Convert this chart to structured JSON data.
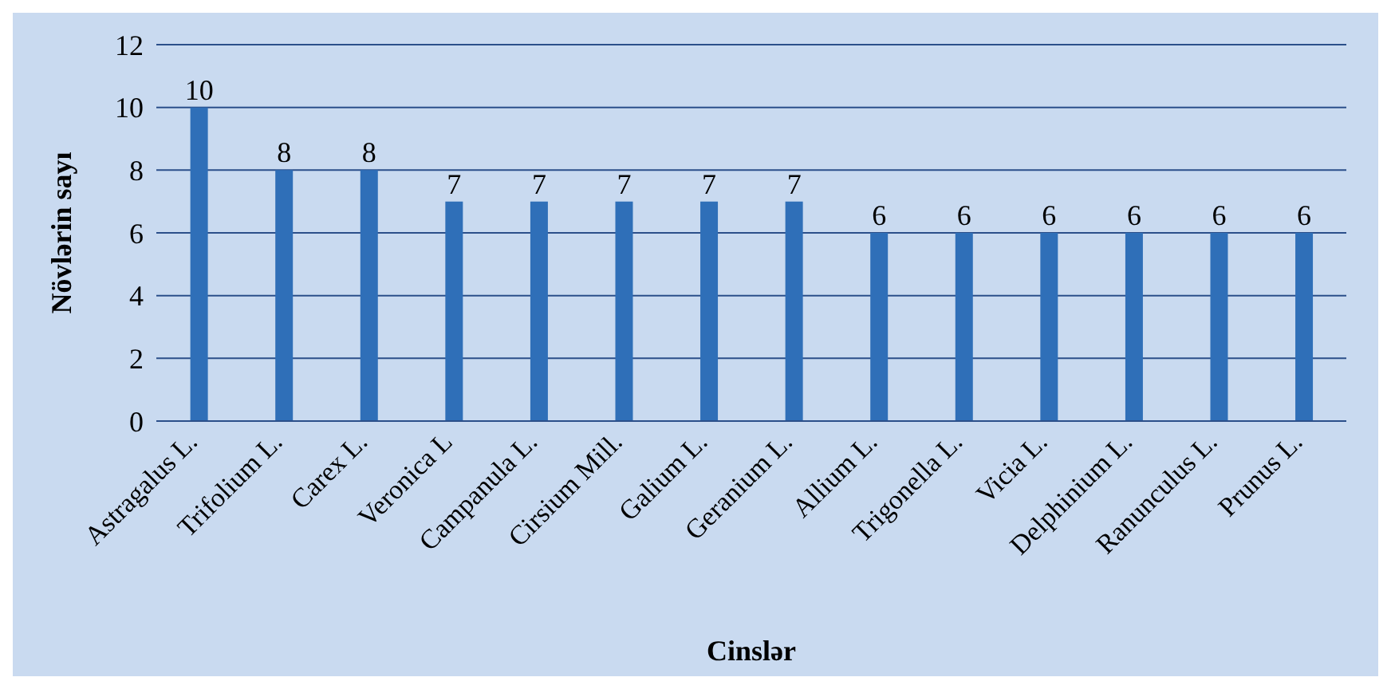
{
  "chart_data": {
    "type": "bar",
    "xlabel": "Cinslər",
    "ylabel": "Növlərin sayı",
    "categories": [
      "Astragalus L.",
      "Trifolium L.",
      "Carex L.",
      "Veronica L",
      "Campanula L.",
      "Cirsium Mill.",
      "Galium L.",
      "Geranium L.",
      "Allium L.",
      "Trigonella L.",
      "Vicia L.",
      "Delphinium L.",
      "Ranunculus L.",
      "Prunus L."
    ],
    "values": [
      10,
      8,
      8,
      7,
      7,
      7,
      7,
      7,
      6,
      6,
      6,
      6,
      6,
      6
    ],
    "color": "#2f6fb8",
    "ylim": [
      0,
      12
    ],
    "yticks": [
      0,
      2,
      4,
      6,
      8,
      10,
      12
    ],
    "grid": "y",
    "data_labels": true
  }
}
